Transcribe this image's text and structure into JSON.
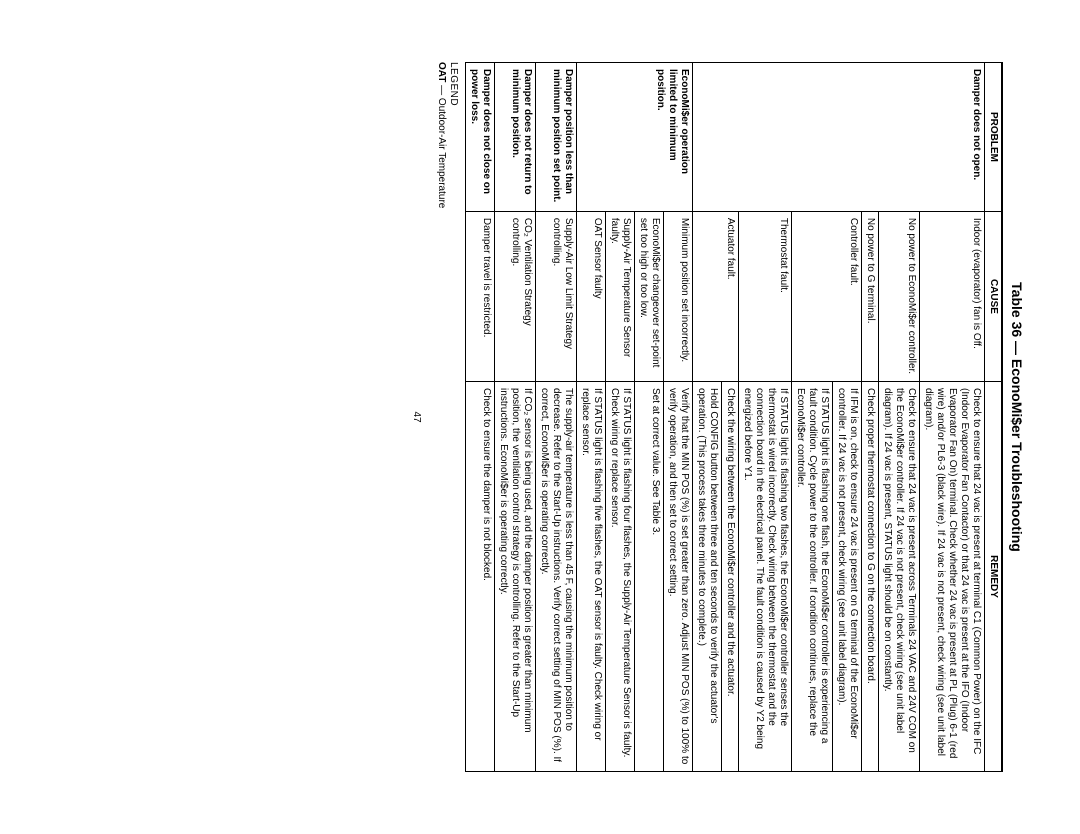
{
  "title": "Table 36 — EconoMi$er Troubleshooting",
  "columns": {
    "c0": "PROBLEM",
    "c1": "CAUSE",
    "c2": "REMEDY"
  },
  "p1": {
    "problem": "Damper does not open.",
    "c1": "Indoor (evaporator) fan is Off.",
    "r1": "Check to ensure that 24 vac is present at terminal C1 (Common Power) on the IFC (Indoor Evaporator Fan Contactor) or that 24 vac is present at the IFO (Indoor Evaporator Fan On) terminal. Check whether 24 vac is present at PL (Plug) 6-1 (red wire) and/or PL6-3 (black wire). If 24 vac is not present, check wiring (see unit label diagram).",
    "c2": "No power to EconoMi$er controller.",
    "r2": "Check to ensure that 24 vac is present across Terminals 24 VAC and 24V COM on the EconoMi$er controller. If 24 vac is not present, check wiring (see unit label diagram). If 24 vac is present, STATUS light should be on constantly.",
    "c3": "No power to G terminal.",
    "r3": "Check proper thermostat connection to G on the connection board.",
    "c4": "Controller fault.",
    "r4": "If IFM is on, check to ensure 24 vac is present on G terminal of the EconoMi$er controller. If 24 vac is not present, check wiring (see unit label diagram).",
    "r4b": "If STATUS light is flashing one flash, the EconoMi$er controller is experiencing a fault condition. Cycle power to the controller. If condition continues, replace the EconoMi$er controller.",
    "c5": "Thermostat fault.",
    "r5": "If STATUS light is flashing two flashes, the EconoMi$er controller senses the thermostat is wired incorrectly. Check wiring between the thermostat and the connection board in the electrical panel. The fault condition is caused by Y2 being energized before Y1.",
    "c6": "Actuator fault.",
    "r6": "Check the wiring between the EconoMi$er controller and the actuator.",
    "r6b": "Hold CONFIG button between three and ten seconds to verify the actuator's operation. (This process takes three minutes to complete.)"
  },
  "p2": {
    "problem": "EconoMi$er operation limited to minimum position.",
    "c1": "Minimum position set incorrectly.",
    "r1": "Verify that the MIN POS (%) is set greater than zero. Adjust MIN POS (%) to 100% to verify operation, and then set to correct setting.",
    "c2": "EconoMi$er changeover set-point set too high or too low.",
    "r2": "Set at correct value. See Table 3.",
    "c3": "Supply-Air Temperature Sensor faulty.",
    "r3": "If STATUS light is flashing four flashes, the Supply-Air Temperature Sensor is faulty. Check wiring or replace sensor.",
    "c4": "OAT Sensor faulty",
    "r4": "If STATUS light is flashing five flashes, the OAT sensor is faulty. Check wiring or replace sensor."
  },
  "p3": {
    "problem": "Damper position less than minimum position set point.",
    "c1": "Supply-Air Low Limit Strategy controlling.",
    "r1": "The supply-air temperature is less than 45 F, causing the minimum position to decrease. Refer to the Start-Up instructions. Verify correct setting of MIN POS (%). If correct, EconoMi$er is operating correctly."
  },
  "p4": {
    "problem": "Damper does not return to minimum position.",
    "c1": "CO₂ Ventilation Strategy controlling.",
    "r1": "If CO₂ sensor is being used, and the damper position is greater than minimum position, the ventilation control strategy is controlling. Refer to the Start-Up instructions. EconoMi$er is operating correctly."
  },
  "p5": {
    "problem": "Damper does not close on power loss.",
    "c1": "Damper travel is restricted.",
    "r1": "Check to ensure the damper is not blocked."
  },
  "legend": {
    "label": "LEGEND",
    "abbr": "OAT",
    "def": " — Outdoor-Air Temperature"
  },
  "pageNum": "47"
}
